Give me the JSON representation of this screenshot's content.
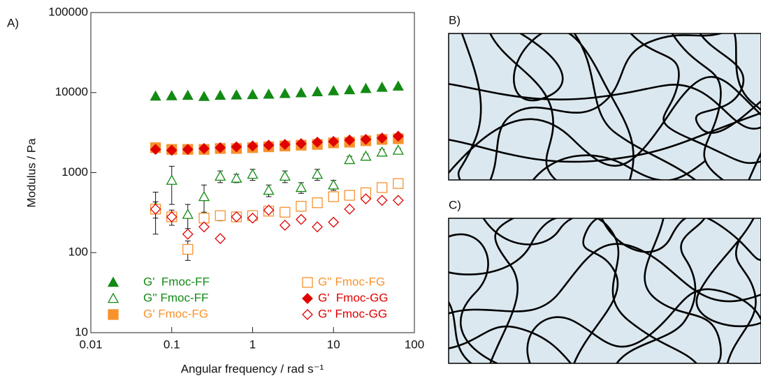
{
  "panel_labels": [
    "A)",
    "B)",
    "C)"
  ],
  "chart_data": {
    "type": "scatter",
    "x_label": "Angular frequency / rad s⁻¹",
    "y_label": "Modulus / Pa",
    "log_x": true,
    "log_y": true,
    "xlim": [
      0.01,
      100
    ],
    "xticks": [
      0.01,
      0.1,
      1,
      10,
      100
    ],
    "ylim": [
      10,
      100000
    ],
    "yticks": [
      10,
      100,
      1000,
      10000,
      100000
    ],
    "legend": "lower left",
    "x": [
      0.0631,
      0.1,
      0.158,
      0.251,
      0.398,
      0.631,
      1,
      1.58,
      2.51,
      3.98,
      6.31,
      10,
      15.8,
      25.1,
      39.8,
      63.1
    ],
    "series": [
      {
        "name": "G'  Fmoc-FF",
        "color": "#138a13",
        "marker": "triangle",
        "filled": true,
        "values": [
          9000,
          9100,
          9200,
          8900,
          9200,
          9300,
          9400,
          9500,
          9700,
          9900,
          10200,
          10500,
          10800,
          11200,
          11600,
          12000
        ]
      },
      {
        "name": "G'' Fmoc-FF",
        "color": "#138a13",
        "marker": "triangle",
        "filled": false,
        "values": [
          370,
          800,
          300,
          500,
          900,
          850,
          950,
          600,
          900,
          650,
          950,
          700,
          1450,
          1600,
          1800,
          1900
        ],
        "errors": [
          200,
          400,
          100,
          200,
          150,
          100,
          150,
          100,
          150,
          100,
          150,
          100,
          150,
          100,
          150,
          100
        ]
      },
      {
        "name": "G' Fmoc-FG",
        "color": "#f7922e",
        "marker": "square",
        "filled": true,
        "values": [
          2050,
          1950,
          1950,
          1950,
          2000,
          2000,
          2050,
          2100,
          2150,
          2200,
          2250,
          2350,
          2400,
          2500,
          2600,
          2650
        ]
      },
      {
        "name": "G'' Fmoc-FG",
        "color": "#f7922e",
        "marker": "square",
        "filled": false,
        "values": [
          350,
          280,
          110,
          270,
          290,
          280,
          290,
          330,
          320,
          380,
          420,
          500,
          520,
          560,
          650,
          730
        ],
        "errors": [
          80,
          60,
          30,
          50,
          40,
          30,
          30,
          40,
          40,
          50,
          50,
          60,
          60,
          60,
          60,
          60
        ]
      },
      {
        "name": "G'  Fmoc-GG",
        "color": "#e00000",
        "marker": "diamond",
        "filled": true,
        "values": [
          1950,
          1900,
          1950,
          2000,
          2050,
          2100,
          2150,
          2200,
          2250,
          2300,
          2400,
          2450,
          2550,
          2600,
          2700,
          2850
        ]
      },
      {
        "name": "G'' Fmoc-GG",
        "color": "#e00000",
        "marker": "diamond",
        "filled": false,
        "values": [
          350,
          280,
          170,
          210,
          150,
          280,
          270,
          340,
          220,
          260,
          210,
          240,
          350,
          470,
          450,
          450
        ]
      }
    ]
  }
}
